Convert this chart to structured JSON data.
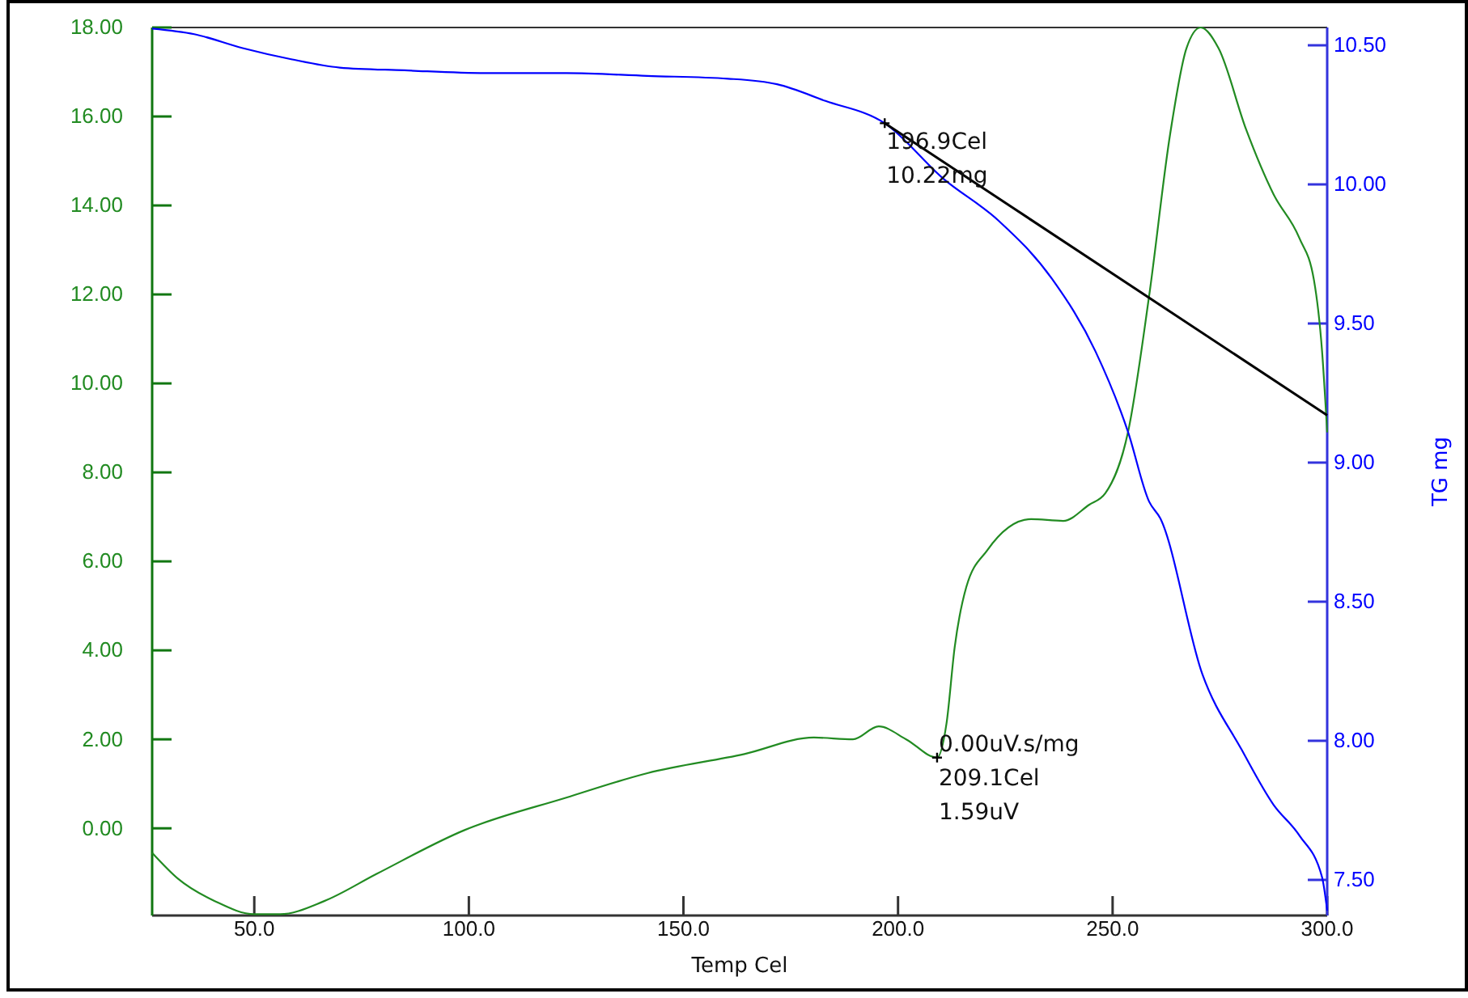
{
  "chart_data": {
    "type": "line",
    "xlabel": "Temp Cel",
    "y2label": "TG mg",
    "xlim": [
      26.2,
      300
    ],
    "xticks": [
      {
        "value": 50,
        "label": "50.0"
      },
      {
        "value": 100,
        "label": "100.0"
      },
      {
        "value": 150,
        "label": "150.0"
      },
      {
        "value": 200,
        "label": "200.0"
      },
      {
        "value": 250,
        "label": "250.0"
      },
      {
        "value": 300,
        "label": "300.0"
      }
    ],
    "ylim": [
      -1.96,
      18.0
    ],
    "yticks": [
      {
        "value": 0,
        "label": "0.00"
      },
      {
        "value": 2,
        "label": "2.00"
      },
      {
        "value": 4,
        "label": "4.00"
      },
      {
        "value": 6,
        "label": "6.00"
      },
      {
        "value": 8,
        "label": "8.00"
      },
      {
        "value": 10,
        "label": "10.00"
      },
      {
        "value": 12,
        "label": "12.00"
      },
      {
        "value": 14,
        "label": "14.00"
      },
      {
        "value": 16,
        "label": "16.00"
      },
      {
        "value": 18,
        "label": "18.00"
      }
    ],
    "y2lim": [
      7.372,
      10.564
    ],
    "y2ticks": [
      {
        "value": 7.5,
        "label": "7.50"
      },
      {
        "value": 8,
        "label": "8.00"
      },
      {
        "value": 8.5,
        "label": "8.50"
      },
      {
        "value": 9,
        "label": "9.00"
      },
      {
        "value": 9.5,
        "label": "9.50"
      },
      {
        "value": 10,
        "label": "10.00"
      },
      {
        "value": 10.5,
        "label": "10.50"
      }
    ],
    "grid": false,
    "series": [
      {
        "color": "#228b22",
        "x": [
          26.2,
          32.2,
          40.9,
          50,
          56,
          66.2,
          78.6,
          99.0,
          122.7,
          141.6,
          164.2,
          180.4,
          189.5,
          195.5,
          201.9,
          209.1,
          211.3,
          213.2,
          215.9,
          220.8,
          231.0,
          238.5,
          244.5,
          248.3,
          253.6,
          258.5,
          263.4,
          267.2,
          270.5,
          274.7,
          281.1,
          287.5,
          293.5,
          296.9,
          298.8,
          300
        ],
        "values": [
          -0.55,
          -1.13,
          -1.64,
          -1.93,
          -1.93,
          -1.64,
          -1.02,
          -0.04,
          0.69,
          1.24,
          1.67,
          2.04,
          2.0,
          2.29,
          2.0,
          1.59,
          2.36,
          4.07,
          5.42,
          6.25,
          6.95,
          6.91,
          7.27,
          7.53,
          8.91,
          11.96,
          15.6,
          17.53,
          18.0,
          17.53,
          15.71,
          14.25,
          13.27,
          12.33,
          10.73,
          8.9
        ]
      },
      {
        "color": "#0000ff",
        "axis": "y2",
        "x": [
          26.2,
          36.0,
          47.3,
          58.6,
          69.9,
          85.0,
          103.9,
          122.7,
          141.6,
          160.4,
          171.8,
          183.1,
          196.9,
          210.6,
          223.4,
          235.9,
          246.0,
          253.6,
          258.5,
          261.1,
          270.9,
          280.0,
          287.5,
          293.5,
          298.8,
          300
        ],
        "values": [
          10.56,
          10.54,
          10.49,
          10.45,
          10.42,
          10.41,
          10.4,
          10.4,
          10.39,
          10.38,
          10.36,
          10.3,
          10.22,
          10.02,
          9.87,
          9.66,
          9.4,
          9.11,
          8.86,
          8.8,
          8.24,
          7.97,
          7.77,
          7.66,
          7.51,
          7.39
        ]
      },
      {
        "color": "#000000",
        "axis": "y2",
        "x": [
          196.9,
          300
        ],
        "values": [
          10.22,
          9.17
        ]
      }
    ],
    "annotations": [
      "196.9Cel\n10.22mg",
      {
        "text": "0.00uV.s/mg\n209.1Cel\n1.59uV",
        "x": 209.1,
        "y": 1.59
      }
    ]
  }
}
